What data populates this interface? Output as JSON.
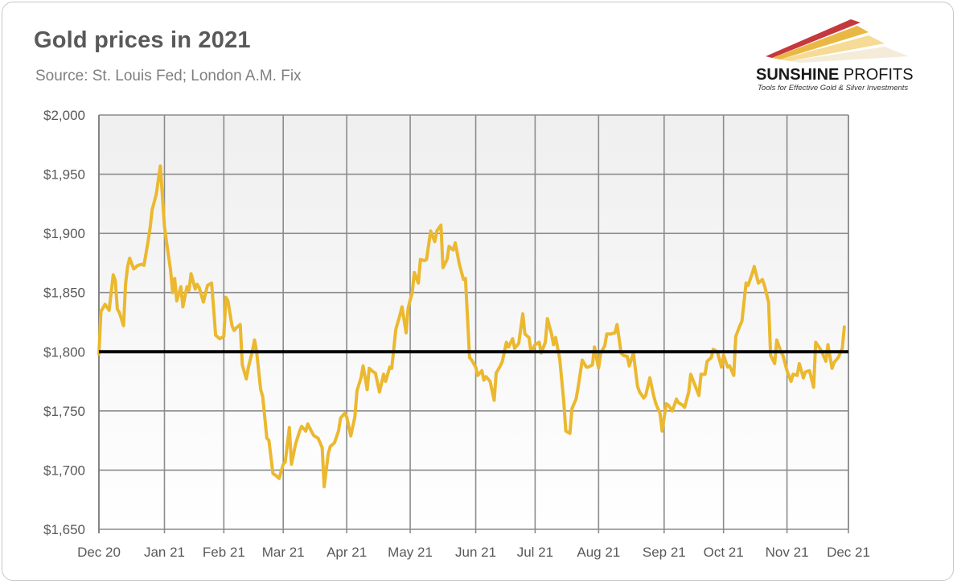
{
  "title": "Gold prices in 2021",
  "subtitle": "Source: St. Louis Fed; London A.M. Fix",
  "logo": {
    "name_bold": "SUNSHINE",
    "name_regular": "PROFITS",
    "tagline": "Tools for Effective Gold & Silver Investments"
  },
  "colors": {
    "series": "#EBB82F",
    "reference_line": "#000000",
    "grid": "#8c8c8c",
    "logo_red": "#c0272d",
    "logo_gold": "#e8b43a"
  },
  "chart_data": {
    "type": "line",
    "title": "Gold prices in 2021",
    "xlabel": "",
    "ylabel": "",
    "ylim": [
      1650,
      2000
    ],
    "y_ticks": [
      1650,
      1700,
      1750,
      1800,
      1850,
      1900,
      1950,
      2000
    ],
    "y_tick_labels": [
      "$1,650",
      "$1,700",
      "$1,750",
      "$1,800",
      "$1,850",
      "$1,900",
      "$1,950",
      "$2,000"
    ],
    "x_tick_labels": [
      "Dec 20",
      "Jan 21",
      "Feb 21",
      "Mar 21",
      "Apr 21",
      "May 21",
      "Jun 21",
      "Jul 21",
      "Aug 21",
      "Sep 21",
      "Oct 21",
      "Nov 21",
      "Dec 21"
    ],
    "x_tick_dates": [
      "2020-12-31",
      "2021-02-01",
      "2021-03-02",
      "2021-03-31",
      "2021-05-01",
      "2021-06-01",
      "2021-07-03",
      "2021-08-01",
      "2021-09-01",
      "2021-10-03",
      "2021-11-01",
      "2021-12-02",
      "2022-01-01"
    ],
    "grid": true,
    "reference_lines": [
      1800
    ],
    "series": [
      {
        "x": [
          "2020-12-31",
          "2021-01-01",
          "2021-01-03",
          "2021-01-05",
          "2021-01-07",
          "2021-01-08",
          "2021-01-09",
          "2021-01-10",
          "2021-01-12",
          "2021-01-13",
          "2021-01-14",
          "2021-01-15",
          "2021-01-17",
          "2021-01-19",
          "2021-01-21",
          "2021-01-22",
          "2021-01-24",
          "2021-01-25",
          "2021-01-26",
          "2021-01-28",
          "2021-01-30",
          "2021-02-01",
          "2021-02-02",
          "2021-02-04",
          "2021-02-05",
          "2021-02-06",
          "2021-02-07",
          "2021-02-09",
          "2021-02-10",
          "2021-02-12",
          "2021-02-13",
          "2021-02-14",
          "2021-02-16",
          "2021-02-17",
          "2021-02-18",
          "2021-02-20",
          "2021-02-22",
          "2021-02-24",
          "2021-02-25",
          "2021-02-26",
          "2021-02-28",
          "2021-03-02",
          "2021-03-03",
          "2021-03-04",
          "2021-03-06",
          "2021-03-07",
          "2021-03-08",
          "2021-03-10",
          "2021-03-11",
          "2021-03-13",
          "2021-03-14",
          "2021-03-16",
          "2021-03-17",
          "2021-03-18",
          "2021-03-20",
          "2021-03-21",
          "2021-03-23",
          "2021-03-24",
          "2021-03-26",
          "2021-03-27",
          "2021-03-29",
          "2021-03-31",
          "2021-04-01",
          "2021-04-03",
          "2021-04-04",
          "2021-04-06",
          "2021-04-08",
          "2021-04-09",
          "2021-04-11",
          "2021-04-12",
          "2021-04-14",
          "2021-04-15",
          "2021-04-17",
          "2021-04-19",
          "2021-04-20",
          "2021-04-22",
          "2021-04-23",
          "2021-04-25",
          "2021-04-27",
          "2021-04-28",
          "2021-04-30",
          "2021-05-01",
          "2021-05-03",
          "2021-05-05",
          "2021-05-06",
          "2021-05-08",
          "2021-05-09",
          "2021-05-11",
          "2021-05-12",
          "2021-05-14",
          "2021-05-15",
          "2021-05-17",
          "2021-05-19",
          "2021-05-20",
          "2021-05-22",
          "2021-05-23",
          "2021-05-25",
          "2021-05-27",
          "2021-05-28",
          "2021-05-30",
          "2021-05-31",
          "2021-06-02",
          "2021-06-03",
          "2021-06-05",
          "2021-06-06",
          "2021-06-08",
          "2021-06-09",
          "2021-06-11",
          "2021-06-13",
          "2021-06-14",
          "2021-06-16",
          "2021-06-17",
          "2021-06-19",
          "2021-06-20",
          "2021-06-22",
          "2021-06-23",
          "2021-06-25",
          "2021-06-27",
          "2021-06-28",
          "2021-06-30",
          "2021-07-01",
          "2021-07-03",
          "2021-07-04",
          "2021-07-06",
          "2021-07-07",
          "2021-07-08",
          "2021-07-10",
          "2021-07-12",
          "2021-07-13",
          "2021-07-15",
          "2021-07-16",
          "2021-07-18",
          "2021-07-19",
          "2021-07-21",
          "2021-07-22",
          "2021-07-24",
          "2021-07-26",
          "2021-07-27",
          "2021-07-29",
          "2021-07-30",
          "2021-08-01",
          "2021-08-03",
          "2021-08-04",
          "2021-08-06",
          "2021-08-07",
          "2021-08-09",
          "2021-08-10",
          "2021-08-11",
          "2021-08-13",
          "2021-08-15",
          "2021-08-16",
          "2021-08-18",
          "2021-08-19",
          "2021-08-21",
          "2021-08-22",
          "2021-08-24",
          "2021-08-26",
          "2021-08-27",
          "2021-08-29",
          "2021-08-30",
          "2021-09-01",
          "2021-09-02",
          "2021-09-04",
          "2021-09-05",
          "2021-09-07",
          "2021-09-09",
          "2021-09-10",
          "2021-09-12",
          "2021-09-13",
          "2021-09-15",
          "2021-09-16",
          "2021-09-18",
          "2021-09-20",
          "2021-09-21",
          "2021-09-23",
          "2021-09-24",
          "2021-09-26",
          "2021-09-28",
          "2021-09-29",
          "2021-10-01",
          "2021-10-02",
          "2021-10-04",
          "2021-10-05",
          "2021-10-07",
          "2021-10-09",
          "2021-10-10",
          "2021-10-12",
          "2021-10-13",
          "2021-10-15",
          "2021-10-16",
          "2021-10-18",
          "2021-10-20",
          "2021-10-21",
          "2021-10-23",
          "2021-10-24",
          "2021-10-26",
          "2021-10-27",
          "2021-10-29",
          "2021-10-31",
          "2021-11-01",
          "2021-11-03",
          "2021-11-04",
          "2021-11-06",
          "2021-11-07",
          "2021-11-09",
          "2021-11-10",
          "2021-11-12",
          "2021-11-13",
          "2021-11-15",
          "2021-11-16",
          "2021-11-18",
          "2021-11-20",
          "2021-11-21",
          "2021-11-23",
          "2021-11-24",
          "2021-11-26",
          "2021-11-27",
          "2021-11-29",
          "2021-11-30",
          "2021-12-02",
          "2021-12-04",
          "2021-12-05",
          "2021-12-07",
          "2021-12-08",
          "2021-12-10",
          "2021-12-11",
          "2021-12-13",
          "2021-12-15",
          "2021-12-16",
          "2021-12-18",
          "2021-12-19",
          "2021-12-21",
          "2021-12-22",
          "2021-12-24",
          "2021-12-25",
          "2021-12-27",
          "2021-12-29",
          "2021-12-30"
        ],
        "y": [
          1798,
          1834,
          1840,
          1835,
          1865,
          1860,
          1836,
          1833,
          1822,
          1857,
          1872,
          1879,
          1870,
          1873,
          1874,
          1873,
          1893,
          1905,
          1920,
          1933,
          1957,
          1906,
          1893,
          1869,
          1850,
          1862,
          1843,
          1855,
          1838,
          1855,
          1852,
          1866,
          1853,
          1857,
          1854,
          1842,
          1856,
          1858,
          1837,
          1814,
          1811,
          1813,
          1846,
          1843,
          1822,
          1818,
          1820,
          1823,
          1789,
          1777,
          1787,
          1801,
          1810,
          1800,
          1768,
          1762,
          1727,
          1725,
          1697,
          1696,
          1693,
          1705,
          1707,
          1736,
          1705,
          1722,
          1733,
          1737,
          1733,
          1739,
          1732,
          1729,
          1727,
          1719,
          1686,
          1714,
          1720,
          1723,
          1733,
          1744,
          1748,
          1745,
          1729,
          1745,
          1767,
          1778,
          1788,
          1768,
          1786,
          1783,
          1782,
          1766,
          1781,
          1775,
          1787,
          1786,
          1819,
          1831,
          1838,
          1816,
          1837,
          1850,
          1867,
          1858,
          1878,
          1877,
          1878,
          1902,
          1893,
          1902,
          1907,
          1871,
          1878,
          1889,
          1886,
          1892,
          1874,
          1861,
          1862,
          1795,
          1793,
          1787,
          1780,
          1784,
          1776,
          1779,
          1775,
          1759,
          1782,
          1788,
          1792,
          1808,
          1804,
          1811,
          1803,
          1807,
          1832,
          1815,
          1812,
          1800,
          1806,
          1808,
          1799,
          1808,
          1828,
          1815,
          1806,
          1812,
          1794,
          1758,
          1733,
          1731,
          1752,
          1760,
          1770,
          1793,
          1787,
          1787,
          1789,
          1804,
          1786,
          1799,
          1805,
          1815,
          1815,
          1816,
          1823,
          1799,
          1797,
          1796,
          1788,
          1799,
          1771,
          1766,
          1761,
          1763,
          1778,
          1762,
          1756,
          1748,
          1733,
          1756,
          1755,
          1750,
          1760,
          1757,
          1755,
          1753,
          1766,
          1781,
          1772,
          1763,
          1781,
          1781,
          1792,
          1795,
          1802,
          1800,
          1787,
          1797,
          1787,
          1788,
          1780,
          1813,
          1822,
          1826,
          1858,
          1856,
          1866,
          1872,
          1858,
          1861,
          1856,
          1842,
          1797,
          1790,
          1810,
          1800,
          1797,
          1784,
          1775,
          1781,
          1780,
          1790,
          1778,
          1783,
          1784,
          1770,
          1808,
          1803,
          1800,
          1792,
          1806,
          1786,
          1791,
          1795,
          1803,
          1821
        ]
      }
    ]
  }
}
